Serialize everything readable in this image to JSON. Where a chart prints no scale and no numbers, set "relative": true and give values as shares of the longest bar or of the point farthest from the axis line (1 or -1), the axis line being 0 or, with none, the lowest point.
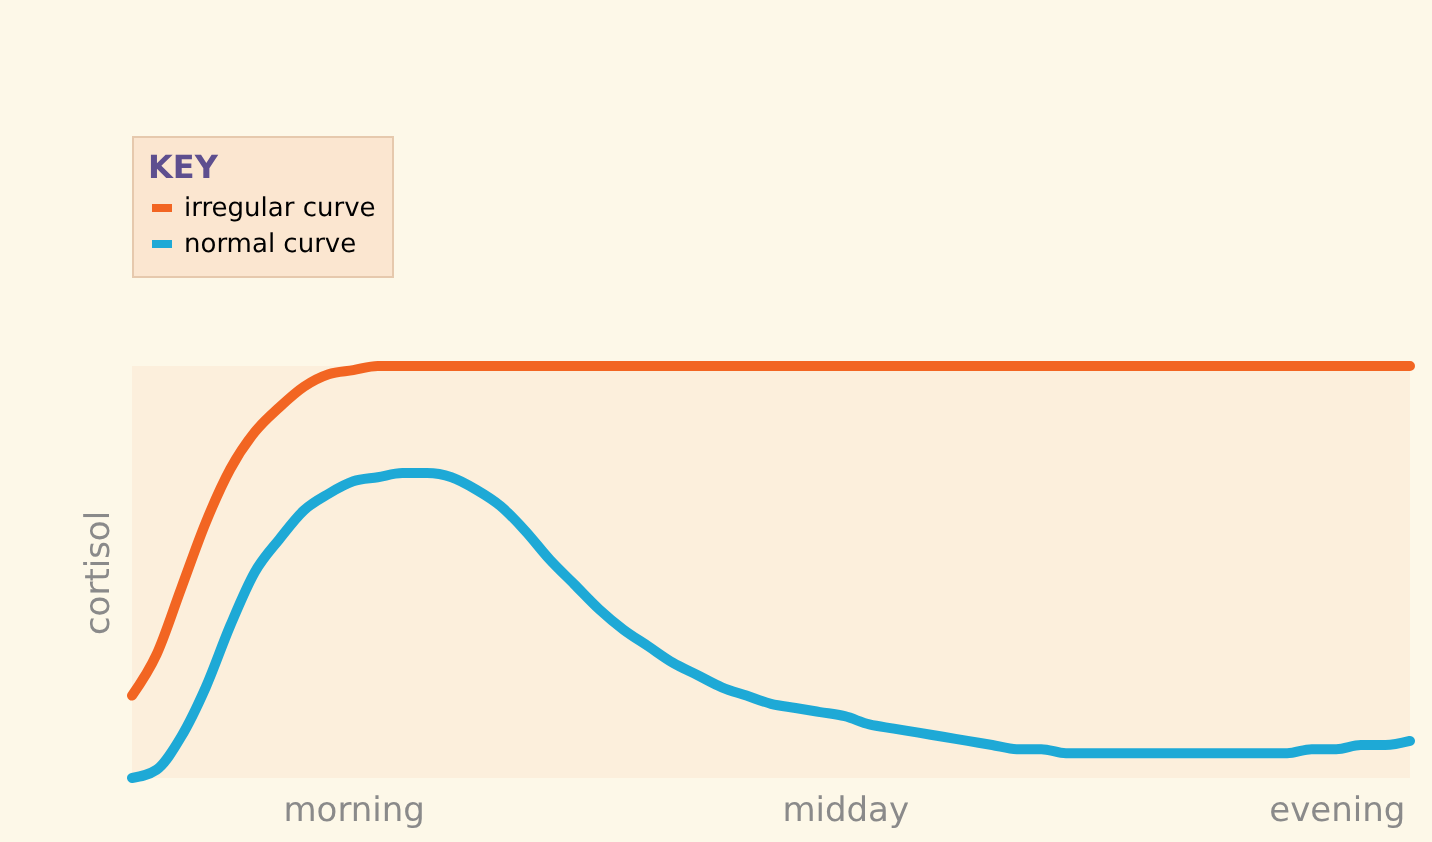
{
  "chart_data": {
    "type": "line",
    "relative": true,
    "ylabel": "cortisol",
    "legend_title": "KEY",
    "legend": "top left",
    "grid": false,
    "marker": "none",
    "line_style": "solid",
    "categories": [
      null,
      null,
      null,
      null,
      null,
      null,
      null,
      null,
      null,
      "morning",
      null,
      null,
      null,
      null,
      null,
      null,
      null,
      null,
      null,
      null,
      null,
      null,
      null,
      null,
      null,
      null,
      null,
      null,
      null,
      "midday",
      null,
      null,
      null,
      null,
      null,
      null,
      null,
      null,
      null,
      null,
      null,
      null,
      null,
      null,
      null,
      null,
      null,
      null,
      null,
      "evening",
      null,
      null,
      null
    ],
    "series": [
      {
        "name": "irregular curve",
        "color": "#f26522",
        "values": [
          0.2,
          0.3,
          0.46,
          0.62,
          0.75,
          0.84,
          0.9,
          0.95,
          0.98,
          0.99,
          1,
          1,
          1,
          1,
          1,
          1,
          1,
          1,
          1,
          1,
          1,
          1,
          1,
          1,
          1,
          1,
          1,
          1,
          1,
          1,
          1,
          1,
          1,
          1,
          1,
          1,
          1,
          1,
          1,
          1,
          1,
          1,
          1,
          1,
          1,
          1,
          1,
          1,
          1,
          1,
          1,
          1,
          1
        ]
      },
      {
        "name": "normal curve",
        "color": "#1ea9d6",
        "values": [
          0,
          0.02,
          0.1,
          0.22,
          0.37,
          0.5,
          0.58,
          0.65,
          0.69,
          0.72,
          0.73,
          0.74,
          0.74,
          0.73,
          0.7,
          0.66,
          0.6,
          0.53,
          0.47,
          0.41,
          0.36,
          0.32,
          0.28,
          0.25,
          0.22,
          0.2,
          0.18,
          0.17,
          0.16,
          0.15,
          0.13,
          0.12,
          0.11,
          0.1,
          0.09,
          0.08,
          0.07,
          0.07,
          0.06,
          0.06,
          0.06,
          0.06,
          0.06,
          0.06,
          0.06,
          0.06,
          0.06,
          0.06,
          0.07,
          0.07,
          0.08,
          0.08,
          0.09
        ]
      }
    ]
  }
}
